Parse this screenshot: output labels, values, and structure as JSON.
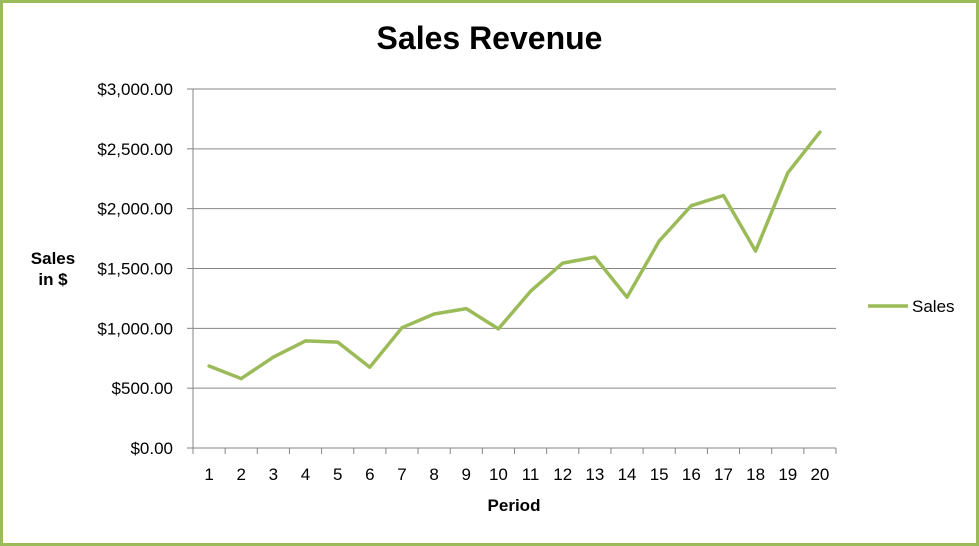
{
  "chart_data": {
    "type": "line",
    "title": "Sales Revenue",
    "xlabel": "Period",
    "ylabel_line1": "Sales",
    "ylabel_line2": "in $",
    "x": [
      1,
      2,
      3,
      4,
      5,
      6,
      7,
      8,
      9,
      10,
      11,
      12,
      13,
      14,
      15,
      16,
      17,
      18,
      19,
      20
    ],
    "ylim": [
      0,
      3000
    ],
    "yticks": [
      0,
      500,
      1000,
      1500,
      2000,
      2500,
      3000
    ],
    "ytick_labels": [
      "$0.00",
      "$500.00",
      "$1,000.00",
      "$1,500.00",
      "$2,000.00",
      "$2,500.00",
      "$3,000.00"
    ],
    "grid": true,
    "legend_position": "right",
    "series": [
      {
        "name": "Sales",
        "color": "#9bbb59",
        "values": [
          685,
          580,
          760,
          895,
          885,
          675,
          1005,
          1120,
          1165,
          995,
          1310,
          1545,
          1595,
          1260,
          1730,
          2025,
          2110,
          1645,
          2300,
          2640
        ]
      }
    ]
  },
  "colors": {
    "frame_border": "#9bbb59",
    "gridline": "#868686",
    "axis": "#868686"
  }
}
